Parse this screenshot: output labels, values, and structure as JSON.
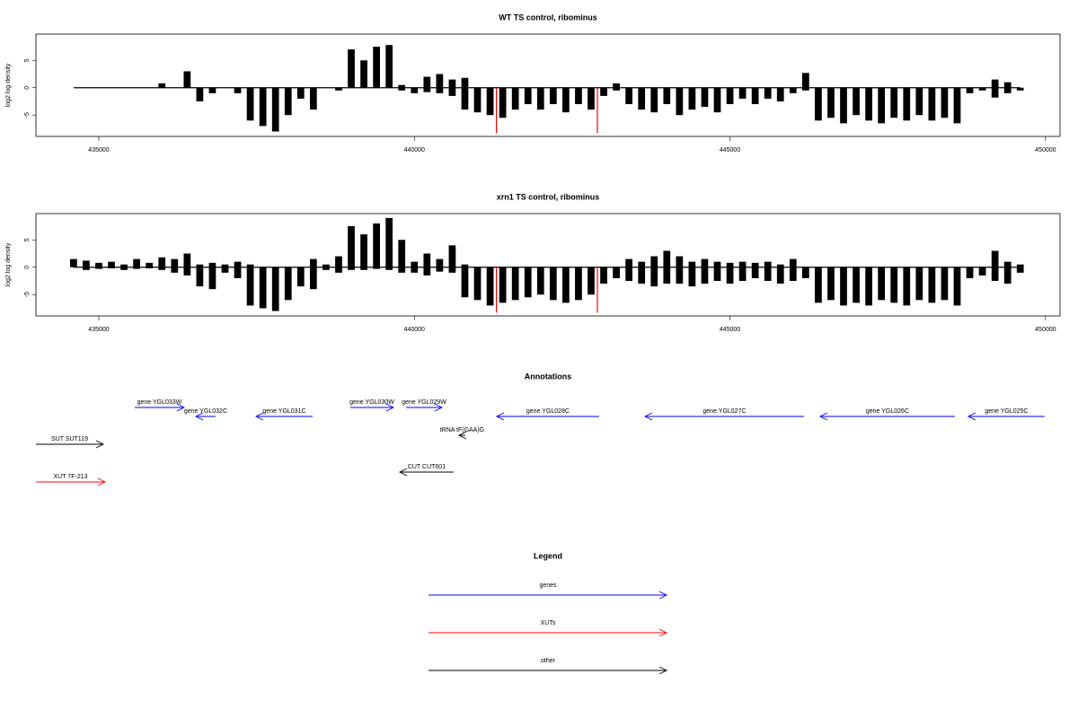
{
  "chart_data": [
    {
      "type": "bar",
      "title": "WT TS control, ribominus",
      "ylabel": "log2 log density",
      "xlim": [
        434004,
        450230
      ],
      "xticks": [
        435000,
        440000,
        445000,
        450000
      ],
      "ylim": [
        -8.9,
        9.8
      ],
      "yticks": [
        -5,
        0,
        5
      ],
      "x0": 434600,
      "xstep": 200,
      "series": [
        {
          "color": "#000000",
          "values": [
            0,
            0,
            0,
            0,
            0,
            0,
            0,
            0.8,
            0,
            3,
            0,
            0,
            0,
            0,
            0,
            0,
            0,
            0,
            0,
            0,
            0,
            0,
            7,
            5,
            7.5,
            7.8,
            0.5,
            0,
            2,
            2.5,
            1.5,
            1.8,
            0,
            0,
            0,
            0,
            0,
            0,
            0,
            0,
            0,
            0,
            0,
            0.8,
            0,
            0,
            0,
            0,
            0,
            0,
            0,
            0,
            0,
            0,
            0,
            0,
            0,
            0,
            2.7,
            0,
            0,
            0,
            0,
            0,
            0,
            0,
            0,
            0,
            0,
            0,
            0,
            0,
            0,
            1.5,
            1,
            0
          ]
        },
        {
          "color": "#000000",
          "values": [
            0,
            0,
            0,
            0,
            0,
            0,
            0,
            0,
            0,
            0,
            -2.5,
            -1,
            0,
            -1,
            -6,
            -7,
            -8,
            -5,
            -2,
            -4,
            0,
            -0.5,
            0,
            0,
            0,
            0,
            -0.5,
            -1,
            -0.8,
            -1,
            -1.5,
            -4,
            -4.5,
            -5,
            -5.5,
            -4,
            -3,
            -4,
            -3,
            -4.5,
            -3,
            -4,
            -1.5,
            -0.5,
            -3,
            -4,
            -4.5,
            -3,
            -5,
            -4,
            -3.5,
            -4.5,
            -3,
            -2,
            -3,
            -2,
            -2.5,
            -1,
            -0.5,
            -6,
            -5.5,
            -6.5,
            -5,
            -6,
            -6.5,
            -5.5,
            -6,
            -5,
            -6,
            -5.5,
            -6.5,
            -1,
            -0.5,
            -1.8,
            -1,
            -0.5
          ]
        }
      ],
      "highlight": {
        "color": "#ff0000",
        "x": [
          441300,
          442900
        ],
        "values": [
          -8.3,
          -8.3
        ]
      }
    },
    {
      "type": "bar",
      "title": "xrn1 TS control, ribominus",
      "ylabel": "log2 log density",
      "xlim": [
        434004,
        450230
      ],
      "xticks": [
        435000,
        440000,
        445000,
        450000
      ],
      "ylim": [
        -8.9,
        9.8
      ],
      "yticks": [
        -5,
        0,
        5
      ],
      "x0": 434600,
      "xstep": 200,
      "series": [
        {
          "color": "#000000",
          "values": [
            1.5,
            1.2,
            0.8,
            1,
            0.5,
            1.5,
            0.8,
            1.8,
            1.5,
            2.5,
            0.5,
            0.8,
            0.5,
            1,
            0.5,
            0,
            0,
            0,
            0,
            1.5,
            0.5,
            2,
            7.5,
            6,
            8,
            9,
            5,
            1,
            2.5,
            1.5,
            4,
            0.5,
            0,
            0,
            0,
            0,
            0,
            0,
            0,
            0,
            0,
            0,
            0,
            0,
            1.5,
            1,
            2,
            3,
            2,
            1,
            1.5,
            1,
            0.8,
            1,
            0.8,
            1,
            0.5,
            1.5,
            0,
            0,
            0,
            0,
            0,
            0,
            0,
            0,
            0,
            0,
            0,
            0,
            0,
            0,
            0,
            3,
            1,
            0.5
          ]
        },
        {
          "color": "#000000",
          "values": [
            0,
            -0.5,
            -0.3,
            -0.2,
            -0.5,
            -0.3,
            -0.2,
            -0.5,
            -1,
            -1.5,
            -3.5,
            -4,
            -1,
            -2,
            -7,
            -7.5,
            -8,
            -6,
            -3.5,
            -4,
            -0.5,
            -1,
            -0.5,
            -0.5,
            -0.3,
            -0.5,
            -1,
            -1,
            -1.5,
            -0.8,
            -1,
            -5.5,
            -6,
            -7,
            -6.5,
            -6,
            -5.5,
            -5,
            -6,
            -6.5,
            -6,
            -5,
            -3,
            -2,
            -2.5,
            -3,
            -3.5,
            -3,
            -3,
            -3.5,
            -3,
            -2.5,
            -3,
            -2.5,
            -2,
            -2.5,
            -3,
            -2.5,
            -2,
            -6.5,
            -6,
            -7,
            -6.5,
            -7,
            -6,
            -6.5,
            -7,
            -6,
            -6.5,
            -6,
            -7,
            -2,
            -1.5,
            -2.5,
            -3,
            -1
          ]
        }
      ],
      "highlight": {
        "color": "#ff0000",
        "x": [
          441300,
          442900
        ],
        "values": [
          -8.3,
          -8.3
        ]
      }
    }
  ],
  "annotations": {
    "title": "Annotations",
    "features": [
      {
        "label": "gene YGL033W",
        "from": 435569,
        "to": 436352,
        "color": "#0000ff"
      },
      {
        "label": "gene YGL032C",
        "from": 436850,
        "to": 436537,
        "color": "#0000ff"
      },
      {
        "label": "gene YGL031C",
        "from": 438387,
        "to": 437491,
        "color": "#0000ff"
      },
      {
        "label": "gene YGL030W",
        "from": 438985,
        "to": 439668,
        "color": "#0000ff"
      },
      {
        "label": "gene YGL029W",
        "from": 439868,
        "to": 440437,
        "color": "#0000ff"
      },
      {
        "label": "gene YGL028C",
        "from": 442928,
        "to": 441305,
        "color": "#0000ff"
      },
      {
        "label": "gene YGL027C",
        "from": 446173,
        "to": 443654,
        "color": "#0000ff"
      },
      {
        "label": "gene YGL026C",
        "from": 448564,
        "to": 446429,
        "color": "#0000ff"
      },
      {
        "label": "gene YGL025C",
        "from": 449987,
        "to": 448777,
        "color": "#0000ff"
      },
      {
        "label": "tRNA tF(GAA)G",
        "from": 440807,
        "to": 440707,
        "color": "#000000"
      },
      {
        "label": "SUT SUT119",
        "from": 434004,
        "to": 435071,
        "color": "#000000"
      },
      {
        "label": "CUT CUT601",
        "from": 440622,
        "to": 439768,
        "color": "#000000"
      },
      {
        "label": "XUT 7F-213",
        "from": 434004,
        "to": 435100,
        "color": "#ff0000"
      }
    ]
  },
  "legend": {
    "title": "Legend",
    "entries": [
      {
        "label": "genes",
        "color": "#0000ff"
      },
      {
        "label": "XUTs",
        "color": "#ff0000"
      },
      {
        "label": "other",
        "color": "#000000"
      }
    ]
  }
}
